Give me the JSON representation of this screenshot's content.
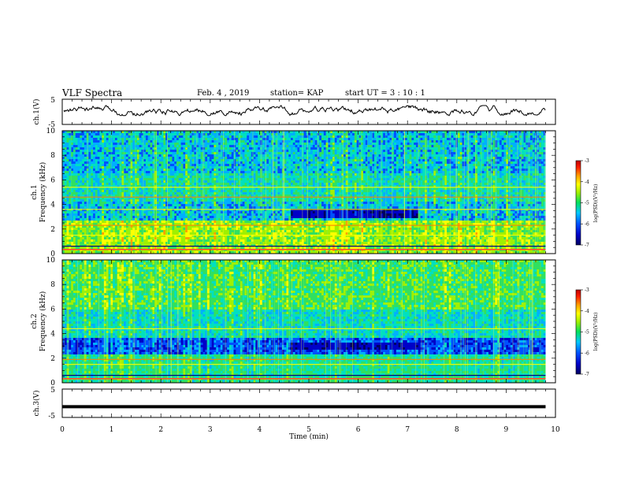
{
  "header": {
    "title": "VLF Spectra",
    "date": "Feb. 4 , 2019",
    "station": "station= KAP",
    "start": "start  UT =  3 : 10 : 1"
  },
  "colors": {
    "palette": [
      "#000060",
      "#0000c8",
      "#0050ff",
      "#00b0ff",
      "#00e0c0",
      "#30e060",
      "#a0f000",
      "#ffff00",
      "#ffa000",
      "#ff3000",
      "#c00000"
    ]
  },
  "chart_data": [
    {
      "type": "line",
      "name": "ch1-waveform",
      "ylabel": "ch.1(V)",
      "ylim": [
        -5,
        5
      ],
      "yticks": [
        "5",
        "-5"
      ],
      "series": [
        {
          "values_range_V": [
            -1.5,
            2.5
          ],
          "mean_V": 0.2
        }
      ]
    },
    {
      "type": "heatmap",
      "name": "ch1-spectrogram",
      "ylabel_top": "ch.1",
      "ylabel": "Frequency (kHz)",
      "ylim": [
        0,
        10
      ],
      "yticks": [
        "0",
        "2",
        "4",
        "6",
        "8",
        "10"
      ],
      "xlim": [
        0,
        10
      ],
      "colorbar": {
        "label": "log(PSD)(V²/Hz)",
        "range": [
          -7,
          -3
        ],
        "ticks": [
          "-3",
          "-4",
          "-5",
          "-6",
          "-7"
        ]
      },
      "quiet_band_kHz": [
        2.8,
        3.6
      ],
      "quiet_band_min": [
        4.6,
        7.2
      ],
      "strong_lines_kHz": [
        0.3,
        1.5,
        2.3,
        3.6,
        4.6,
        5.4
      ]
    },
    {
      "type": "heatmap",
      "name": "ch2-spectrogram",
      "ylabel_top": "ch.2",
      "ylabel": "Frequency (kHz)",
      "ylim": [
        0,
        10
      ],
      "yticks": [
        "0",
        "2",
        "4",
        "6",
        "8",
        "10"
      ],
      "xlim": [
        0,
        10
      ],
      "colorbar": {
        "label": "log(PSD)(V²/Hz)",
        "range": [
          -7,
          -3
        ],
        "ticks": [
          "-3",
          "-4",
          "-5",
          "-6",
          "-7"
        ]
      },
      "quiet_band_kHz": [
        2.6,
        3.2
      ],
      "strong_lines_kHz": [
        0.3,
        1.5,
        1.9,
        4.4
      ]
    },
    {
      "type": "line",
      "name": "ch3-waveform",
      "ylabel": "ch.3(V)",
      "ylim": [
        -5,
        5
      ],
      "yticks": [
        "5",
        "-5"
      ],
      "series": [
        {
          "values_V": "constant",
          "level_V": -1.2
        }
      ]
    }
  ],
  "xaxis": {
    "label": "Time (min)",
    "ticks": [
      "0",
      "1",
      "2",
      "3",
      "4",
      "5",
      "6",
      "7",
      "8",
      "9",
      "10"
    ],
    "xlim": [
      0,
      10
    ],
    "data_end_min": 9.8
  }
}
